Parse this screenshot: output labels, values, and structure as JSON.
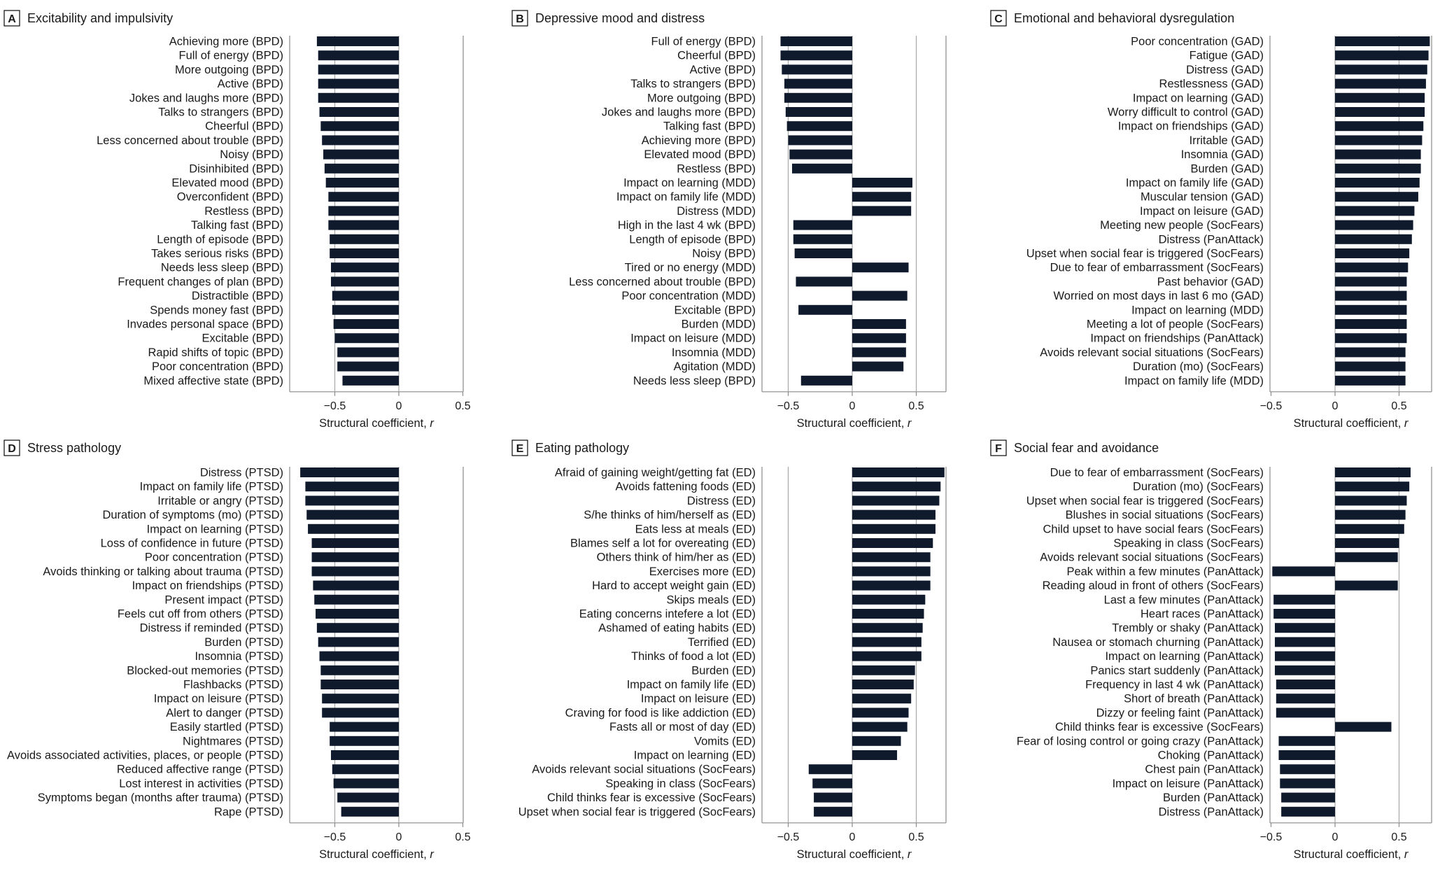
{
  "chart_data": [
    {
      "type": "bar",
      "orientation": "horizontal",
      "letter": "A",
      "title": "Excitability and impulsivity",
      "xlabel": "Structural coefficient, r",
      "xlim": [
        -0.85,
        0.55
      ],
      "xticks": [
        -0.5,
        0,
        0.5
      ],
      "xtick_labels": [
        "−0.5",
        "0",
        "0.5"
      ],
      "categories": [
        "Achieving more (BPD)",
        "Full of energy (BPD)",
        "More outgoing (BPD)",
        "Active (BPD)",
        "Jokes and laughs more (BPD)",
        "Talks to strangers (BPD)",
        "Cheerful (BPD)",
        "Less concerned about trouble (BPD)",
        "Noisy (BPD)",
        "Disinhibited (BPD)",
        "Elevated mood (BPD)",
        "Overconfident (BPD)",
        "Restless (BPD)",
        "Talking fast (BPD)",
        "Length of episode (BPD)",
        "Takes serious risks (BPD)",
        "Needs less sleep (BPD)",
        "Frequent changes of plan (BPD)",
        "Distractible (BPD)",
        "Spends money fast (BPD)",
        "Invades personal space (BPD)",
        "Excitable (BPD)",
        "Rapid shifts of topic (BPD)",
        "Poor concentration (BPD)",
        "Mixed affective state (BPD)"
      ],
      "values": [
        -0.64,
        -0.63,
        -0.63,
        -0.63,
        -0.63,
        -0.62,
        -0.61,
        -0.6,
        -0.59,
        -0.58,
        -0.57,
        -0.55,
        -0.55,
        -0.55,
        -0.54,
        -0.54,
        -0.53,
        -0.53,
        -0.52,
        -0.52,
        -0.51,
        -0.5,
        -0.48,
        -0.48,
        -0.44
      ]
    },
    {
      "type": "bar",
      "orientation": "horizontal",
      "letter": "B",
      "title": "Depressive mood and distress",
      "xlabel": "Structural coefficient, r",
      "xlim": [
        -0.85,
        0.55
      ],
      "xticks": [
        -0.5,
        0,
        0.5
      ],
      "xtick_labels": [
        "−0.5",
        "0",
        "0.5"
      ],
      "categories": [
        "Full of energy (BPD)",
        "Cheerful (BPD)",
        "Active (BPD)",
        "Talks to strangers (BPD)",
        "More outgoing (BPD)",
        "Jokes and laughs more (BPD)",
        "Talking fast (BPD)",
        "Achieving more (BPD)",
        "Elevated mood (BPD)",
        "Restless (BPD)",
        "Impact on learning (MDD)",
        "Impact on family life (MDD)",
        "Distress (MDD)",
        "High in the last 4 wk (BPD)",
        "Length of episode (BPD)",
        "Noisy (BPD)",
        "Tired or no energy (MDD)",
        "Less concerned about trouble (BPD)",
        "Poor concentration (MDD)",
        "Excitable (BPD)",
        "Burden (MDD)",
        "Impact on leisure (MDD)",
        "Insomnia (MDD)",
        "Agitation (MDD)",
        "Needs less sleep (BPD)"
      ],
      "values": [
        -0.56,
        -0.56,
        -0.55,
        -0.53,
        -0.53,
        -0.52,
        -0.51,
        -0.5,
        -0.49,
        -0.47,
        0.47,
        0.46,
        0.46,
        -0.46,
        -0.46,
        -0.45,
        0.44,
        -0.44,
        0.43,
        -0.42,
        0.42,
        0.42,
        0.42,
        0.4,
        -0.4
      ]
    },
    {
      "type": "bar",
      "orientation": "horizontal",
      "letter": "C",
      "title": "Emotional and behavioral dysregulation",
      "xlabel": "Structural coefficient, r",
      "xlim": [
        -0.5,
        0.75
      ],
      "xticks": [
        -0.5,
        0,
        0.5
      ],
      "xtick_labels": [
        "−0.5",
        "0",
        "0.5"
      ],
      "categories": [
        "Poor concentration (GAD)",
        "Fatigue (GAD)",
        "Distress (GAD)",
        "Restlessness (GAD)",
        "Impact on learning (GAD)",
        "Worry difficult to control (GAD)",
        "Impact on friendships (GAD)",
        "Irritable (GAD)",
        "Insomnia (GAD)",
        "Burden (GAD)",
        "Impact on family life (GAD)",
        "Muscular tension (GAD)",
        "Impact on leisure (GAD)",
        "Meeting new people (SocFears)",
        "Distress (PanAttack)",
        "Upset when social fear is triggered (SocFears)",
        "Due to fear of embarrassment (SocFears)",
        "Past behavior (GAD)",
        "Worried on most days in last 6 mo (GAD)",
        "Impact on learning (MDD)",
        "Meeting a lot of people (SocFears)",
        "Impact on friendships (PanAttack)",
        "Avoids relevant social situations (SocFears)",
        "Duration (mo) (SocFears)",
        "Impact on family life (MDD)"
      ],
      "values": [
        0.74,
        0.73,
        0.72,
        0.71,
        0.7,
        0.7,
        0.69,
        0.68,
        0.67,
        0.67,
        0.66,
        0.65,
        0.62,
        0.61,
        0.6,
        0.58,
        0.57,
        0.56,
        0.56,
        0.56,
        0.56,
        0.56,
        0.55,
        0.55,
        0.55
      ]
    },
    {
      "type": "bar",
      "orientation": "horizontal",
      "letter": "D",
      "title": "Stress pathology",
      "xlabel": "Structural coefficient, r",
      "xlim": [
        -0.85,
        0.55
      ],
      "xticks": [
        -0.5,
        0,
        0.5
      ],
      "xtick_labels": [
        "−0.5",
        "0",
        "0.5"
      ],
      "categories": [
        "Distress (PTSD)",
        "Impact on family life (PTSD)",
        "Irritable or angry (PTSD)",
        "Duration of symptoms (mo) (PTSD)",
        "Impact on learning (PTSD)",
        "Loss of confidence in future (PTSD)",
        "Poor concentration (PTSD)",
        "Avoids thinking or talking about trauma (PTSD)",
        "Impact on friendships (PTSD)",
        "Present impact (PTSD)",
        "Feels cut off from others (PTSD)",
        "Distress if reminded (PTSD)",
        "Burden (PTSD)",
        "Insomnia (PTSD)",
        "Blocked-out memories (PTSD)",
        "Flashbacks (PTSD)",
        "Impact on leisure (PTSD)",
        "Alert to danger (PTSD)",
        "Easily startled (PTSD)",
        "Nightmares (PTSD)",
        "Avoids associated activities, places, or people (PTSD)",
        "Reduced affective range (PTSD)",
        "Lost interest in activities (PTSD)",
        "Symptoms began (months after trauma) (PTSD)",
        "Rape (PTSD)"
      ],
      "values": [
        -0.77,
        -0.73,
        -0.73,
        -0.72,
        -0.71,
        -0.68,
        -0.68,
        -0.68,
        -0.67,
        -0.66,
        -0.65,
        -0.64,
        -0.63,
        -0.62,
        -0.61,
        -0.61,
        -0.6,
        -0.6,
        -0.54,
        -0.54,
        -0.53,
        -0.52,
        -0.51,
        -0.48,
        -0.45
      ]
    },
    {
      "type": "bar",
      "orientation": "horizontal",
      "letter": "E",
      "title": "Eating pathology",
      "xlabel": "Structural coefficient, r",
      "xlim": [
        -0.85,
        0.55
      ],
      "xticks": [
        -0.5,
        0,
        0.5
      ],
      "xtick_labels": [
        "−0.5",
        "0",
        "0.5"
      ],
      "categories": [
        "Afraid of gaining weight/getting fat (ED)",
        "Avoids fattening foods (ED)",
        "Distress (ED)",
        "S/he thinks of him/herself as (ED)",
        "Eats less at meals (ED)",
        "Blames self a lot for overeating (ED)",
        "Others think of him/her as (ED)",
        "Exercises more (ED)",
        "Hard to accept weight gain (ED)",
        "Skips meals (ED)",
        "Eating concerns intefere a lot (ED)",
        "Ashamed of eating habits (ED)",
        "Terrified (ED)",
        "Thinks of food a lot (ED)",
        "Burden (ED)",
        "Impact on family life (ED)",
        "Impact on leisure (ED)",
        "Craving for food is like addiction (ED)",
        "Fasts all or most of day (ED)",
        "Vomits (ED)",
        "Impact on learning (ED)",
        "Avoids relevant social situations (SocFears)",
        "Speaking in class (SocFears)",
        "Child thinks fear is excessive (SocFears)",
        "Upset when social fear is triggered (SocFears)"
      ],
      "values": [
        0.72,
        0.69,
        0.68,
        0.65,
        0.65,
        0.63,
        0.61,
        0.61,
        0.61,
        0.57,
        0.56,
        0.55,
        0.54,
        0.54,
        0.49,
        0.48,
        0.46,
        0.44,
        0.43,
        0.38,
        0.35,
        -0.34,
        -0.31,
        -0.3,
        -0.3
      ]
    },
    {
      "type": "bar",
      "orientation": "horizontal",
      "letter": "F",
      "title": "Social fear and avoidance",
      "xlabel": "Structural coefficient, r",
      "xlim": [
        -0.5,
        0.75
      ],
      "xticks": [
        -0.5,
        0,
        0.5
      ],
      "xtick_labels": [
        "−0.5",
        "0",
        "0.5"
      ],
      "categories": [
        "Due to fear of embarrassment (SocFears)",
        "Duration (mo) (SocFears)",
        "Upset when social fear is triggered (SocFears)",
        "Blushes in social situations (SocFears)",
        "Child upset to have social fears (SocFears)",
        "Speaking in class (SocFears)",
        "Avoids relevant social situations (SocFears)",
        "Peak within a few minutes (PanAttack)",
        "Reading aloud in front of others (SocFears)",
        "Last a few minutes (PanAttack)",
        "Heart races (PanAttack)",
        "Trembly or shaky (PanAttack)",
        "Nausea or stomach churning (PanAttack)",
        "Impact on learning (PanAttack)",
        "Panics start suddenly (PanAttack)",
        "Frequency in last 4 wk (PanAttack)",
        "Short of breath (PanAttack)",
        "Dizzy or feeling faint (PanAttack)",
        "Child thinks fear is excessive (SocFears)",
        "Fear of losing control or going crazy (PanAttack)",
        "Choking (PanAttack)",
        "Chest pain (PanAttack)",
        "Impact on leisure (PanAttack)",
        "Burden (PanAttack)",
        "Distress (PanAttack)"
      ],
      "values": [
        0.59,
        0.58,
        0.56,
        0.55,
        0.54,
        0.5,
        0.49,
        -0.49,
        0.49,
        -0.48,
        -0.48,
        -0.47,
        -0.47,
        -0.47,
        -0.47,
        -0.46,
        -0.46,
        -0.46,
        0.44,
        -0.44,
        -0.44,
        -0.43,
        -0.43,
        -0.42,
        -0.42
      ]
    }
  ]
}
